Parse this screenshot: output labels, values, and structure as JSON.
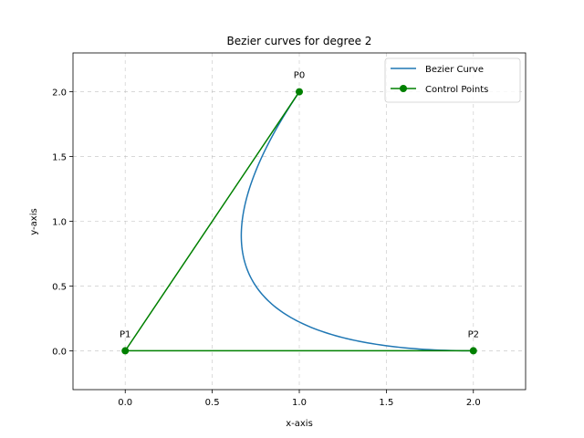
{
  "chart_data": {
    "type": "line",
    "title": "Bezier curves for degree 2",
    "xlabel": "x-axis",
    "ylabel": "y-axis",
    "xlim": [
      -0.3,
      2.3
    ],
    "ylim": [
      -0.3,
      2.3
    ],
    "xticks": [
      "0.0",
      "0.5",
      "1.0",
      "1.5",
      "2.0"
    ],
    "yticks": [
      "0.0",
      "0.5",
      "1.0",
      "1.5",
      "2.0"
    ],
    "grid": true,
    "legend_position": "upper-right",
    "series": [
      {
        "name": "Bezier Curve",
        "color": "#1f77b4",
        "marker": "none",
        "control_points_for_curve": [
          [
            1,
            2
          ],
          [
            0,
            0
          ],
          [
            2,
            0
          ]
        ]
      },
      {
        "name": "Control Points",
        "color": "#008000",
        "marker": "circle",
        "x": [
          1,
          0,
          2
        ],
        "y": [
          2,
          0,
          0
        ]
      }
    ],
    "point_labels": [
      {
        "text": "P0",
        "x": 1,
        "y": 2
      },
      {
        "text": "P1",
        "x": 0,
        "y": 0
      },
      {
        "text": "P2",
        "x": 2,
        "y": 0
      }
    ]
  }
}
